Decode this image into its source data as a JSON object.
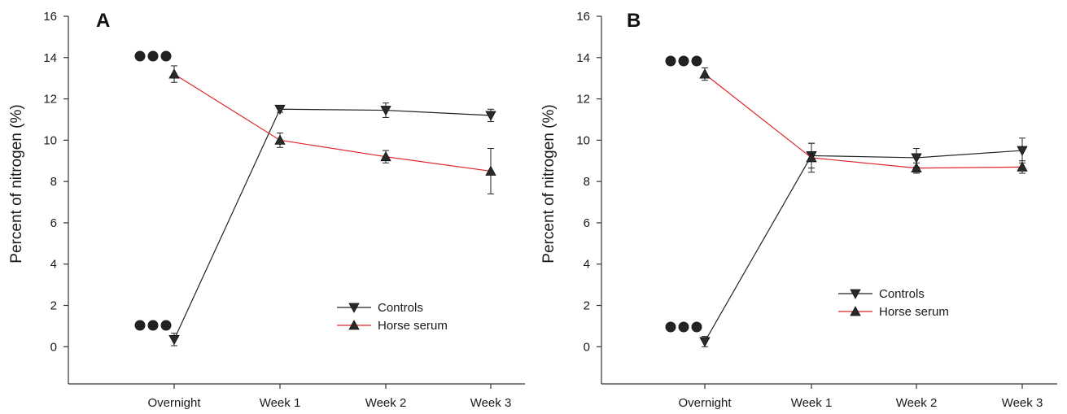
{
  "colors": {
    "controls": "#222222",
    "horse_serum": "#e0252b",
    "axis": "#333333",
    "marker": "#2a2a2a"
  },
  "chart_data": [
    {
      "type": "line",
      "panel_label": "A",
      "ylabel": "Percent of nitrogen (%)",
      "xlabel": "",
      "categories": [
        "Overnight",
        "Week 1",
        "Week 2",
        "Week 3"
      ],
      "ylim": [
        -1.8,
        16
      ],
      "yticks": [
        0,
        2,
        4,
        6,
        8,
        10,
        12,
        14,
        16
      ],
      "grid": false,
      "legend": "bottom-right",
      "series": [
        {
          "name": "Controls",
          "marker": "triangle-down",
          "values": [
            0.35,
            11.5,
            11.45,
            11.2
          ],
          "errors": [
            0.3,
            0.15,
            0.35,
            0.3
          ]
        },
        {
          "name": "Horse serum",
          "marker": "triangle-up",
          "values": [
            13.2,
            10.0,
            9.2,
            8.5
          ],
          "errors": [
            0.4,
            0.35,
            0.3,
            1.1
          ]
        }
      ],
      "annotations": [
        {
          "symbol": "●●●",
          "category": "Overnight",
          "series": "Horse serum"
        },
        {
          "symbol": "●●●",
          "category": "Overnight",
          "series": "Controls"
        }
      ]
    },
    {
      "type": "line",
      "panel_label": "B",
      "ylabel": "Percent of nitrogen (%)",
      "xlabel": "",
      "categories": [
        "Overnight",
        "Week 1",
        "Week 2",
        "Week 3"
      ],
      "ylim": [
        -1.8,
        16
      ],
      "yticks": [
        0,
        2,
        4,
        6,
        8,
        10,
        12,
        14,
        16
      ],
      "grid": false,
      "legend": "center-right",
      "series": [
        {
          "name": "Controls",
          "marker": "triangle-down",
          "values": [
            0.25,
            9.25,
            9.15,
            9.5
          ],
          "errors": [
            0.25,
            0.6,
            0.45,
            0.6
          ]
        },
        {
          "name": "Horse serum",
          "marker": "triangle-up",
          "values": [
            13.2,
            9.15,
            8.65,
            8.7
          ],
          "errors": [
            0.3,
            0.7,
            0.25,
            0.3
          ]
        }
      ],
      "annotations": [
        {
          "symbol": "●●●",
          "category": "Overnight",
          "series": "Horse serum"
        },
        {
          "symbol": "●●●",
          "category": "Overnight",
          "series": "Controls"
        }
      ]
    }
  ]
}
